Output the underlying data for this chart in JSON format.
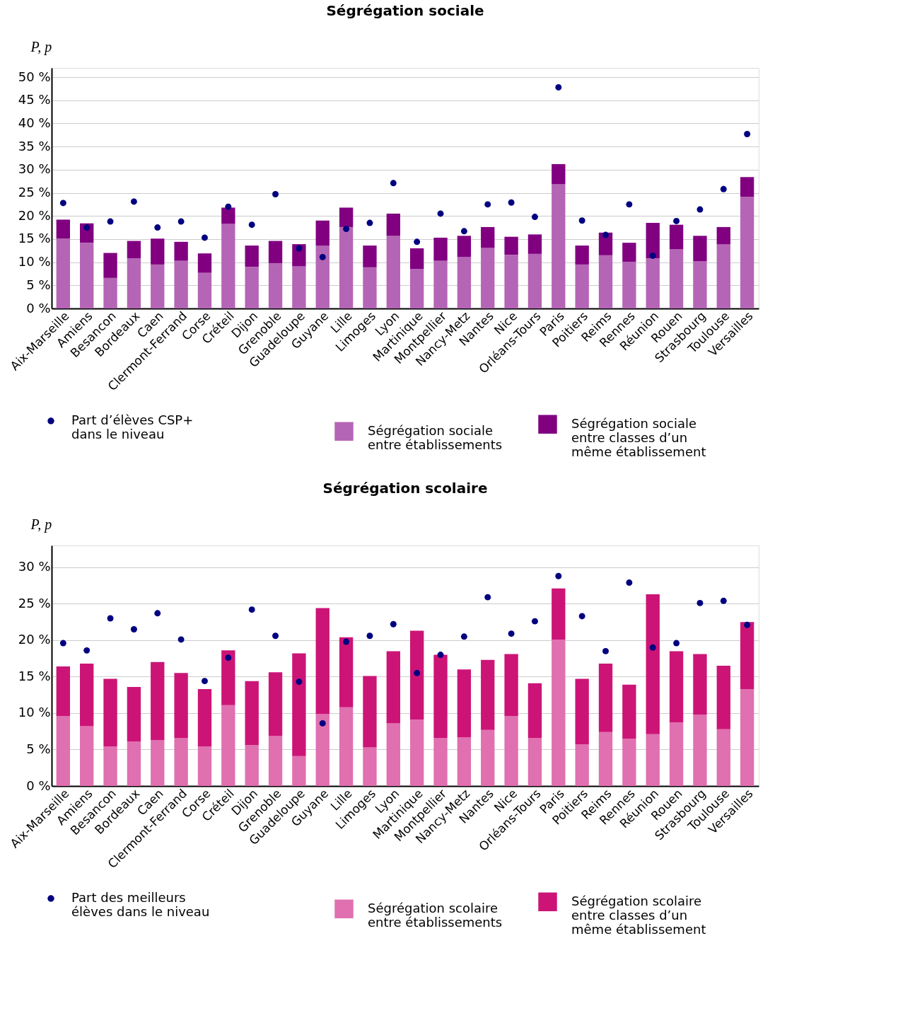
{
  "chart_data": [
    {
      "type": "bar",
      "title": "Ségrégation sociale",
      "ylabel": "P, p",
      "stacked": true,
      "grid": "y",
      "legend": "bottom",
      "categories": [
        "Aix-Marseille",
        "Amiens",
        "Besancon",
        "Bordeaux",
        "Caen",
        "Clermont-Ferrand",
        "Corse",
        "Créteil",
        "Dijon",
        "Grenoble",
        "Guadeloupe",
        "Guyane",
        "Lille",
        "Limoges",
        "Lyon",
        "Martinique",
        "Montpellier",
        "Nancy-Metz",
        "Nantes",
        "Nice",
        "Orléans-Tours",
        "Paris",
        "Poitiers",
        "Reims",
        "Rennes",
        "Réunion",
        "Rouen",
        "Strasbourg",
        "Toulouse",
        "Versailles"
      ],
      "ylim": [
        0,
        52
      ],
      "yticks": [
        {
          "value": 0,
          "label": "0 %"
        },
        {
          "value": 5,
          "label": "5 %"
        },
        {
          "value": 10,
          "label": "10 %"
        },
        {
          "value": 15,
          "label": "15 %"
        },
        {
          "value": 20,
          "label": "20 %"
        },
        {
          "value": 25,
          "label": "25 %"
        },
        {
          "value": 30,
          "label": "30 %"
        },
        {
          "value": 35,
          "label": "35 %"
        },
        {
          "value": 40,
          "label": "40 %"
        },
        {
          "value": 45,
          "label": "45 %"
        },
        {
          "value": 50,
          "label": "50 %"
        }
      ],
      "series": [
        {
          "type": "scatter",
          "marker": "circle",
          "name": "Part d’élèves CSP+ dans le niveau",
          "color": "#000080",
          "values": [
            22.8,
            17.5,
            18.8,
            23.1,
            17.5,
            18.8,
            15.3,
            22.0,
            18.1,
            24.7,
            13.0,
            11.1,
            17.2,
            18.5,
            27.1,
            14.4,
            20.5,
            16.7,
            22.5,
            22.9,
            19.8,
            47.8,
            19.0,
            15.9,
            22.5,
            11.4,
            18.9,
            21.4,
            25.8,
            37.7
          ]
        },
        {
          "name": "Ségrégation sociale entre établissements",
          "color": "#b565b5",
          "values": [
            15.1,
            14.2,
            6.6,
            10.8,
            9.5,
            10.3,
            7.7,
            18.3,
            9.0,
            9.8,
            9.1,
            13.6,
            17.6,
            8.9,
            15.7,
            8.5,
            10.3,
            11.1,
            13.1,
            11.6,
            11.8,
            26.9,
            9.5,
            11.5,
            10.1,
            10.8,
            12.8,
            10.2,
            13.9,
            24.1
          ]
        },
        {
          "name": "Ségrégation sociale entre classes d’un même établissement",
          "color": "#800080",
          "values": [
            4.1,
            4.2,
            5.4,
            3.8,
            5.6,
            4.1,
            4.2,
            3.5,
            4.6,
            4.8,
            4.8,
            5.4,
            4.2,
            4.7,
            4.8,
            4.5,
            5.0,
            4.6,
            4.5,
            3.9,
            4.2,
            4.3,
            4.1,
            4.9,
            4.1,
            7.7,
            5.3,
            5.5,
            3.7,
            4.3
          ]
        }
      ]
    },
    {
      "type": "bar",
      "title": "Ségrégation scolaire",
      "ylabel": "P, p",
      "stacked": true,
      "grid": "y",
      "legend": "bottom",
      "categories": [
        "Aix-Marseille",
        "Amiens",
        "Besancon",
        "Bordeaux",
        "Caen",
        "Clermont-Ferrand",
        "Corse",
        "Créteil",
        "Dijon",
        "Grenoble",
        "Guadeloupe",
        "Guyane",
        "Lille",
        "Limoges",
        "Lyon",
        "Martinique",
        "Montpellier",
        "Nancy-Metz",
        "Nantes",
        "Nice",
        "Orléans-Tours",
        "Paris",
        "Poitiers",
        "Reims",
        "Rennes",
        "Réunion",
        "Rouen",
        "Strasbourg",
        "Toulouse",
        "Versailles"
      ],
      "ylim": [
        0,
        33
      ],
      "yticks": [
        {
          "value": 0,
          "label": "0 %"
        },
        {
          "value": 5,
          "label": "5 %"
        },
        {
          "value": 10,
          "label": "10 %"
        },
        {
          "value": 15,
          "label": "15 %"
        },
        {
          "value": 20,
          "label": "20 %"
        },
        {
          "value": 25,
          "label": "25 %"
        },
        {
          "value": 30,
          "label": "30 %"
        }
      ],
      "series": [
        {
          "type": "scatter",
          "marker": "circle",
          "name": "Part des meilleurs élèves dans le niveau",
          "color": "#000080",
          "values": [
            19.6,
            18.6,
            23.0,
            21.5,
            23.7,
            20.1,
            14.4,
            17.6,
            24.2,
            20.6,
            14.3,
            8.6,
            19.8,
            20.6,
            22.2,
            15.5,
            18.0,
            20.5,
            25.9,
            20.9,
            22.6,
            28.8,
            23.3,
            18.5,
            27.9,
            19.0,
            19.6,
            25.1,
            25.4,
            22.1
          ]
        },
        {
          "name": "Ségrégation scolaire entre établissements",
          "color": "#e070b0",
          "values": [
            9.6,
            8.2,
            5.4,
            6.1,
            6.3,
            6.6,
            5.4,
            11.1,
            5.6,
            6.9,
            4.1,
            9.9,
            10.8,
            5.3,
            8.6,
            9.1,
            6.6,
            6.7,
            7.7,
            9.6,
            6.6,
            20.1,
            5.7,
            7.4,
            6.5,
            7.1,
            8.7,
            9.8,
            7.8,
            13.3
          ]
        },
        {
          "name": "Ségrégation scolaire entre classes d’un même établissement",
          "color": "#cc1477",
          "values": [
            6.8,
            8.6,
            9.3,
            7.5,
            10.7,
            8.9,
            7.9,
            7.5,
            8.8,
            8.7,
            14.1,
            14.5,
            9.6,
            9.8,
            9.9,
            12.2,
            11.4,
            9.3,
            9.6,
            8.5,
            7.5,
            7.0,
            9.0,
            9.4,
            7.4,
            19.2,
            9.8,
            8.3,
            8.7,
            9.2
          ]
        }
      ]
    }
  ]
}
